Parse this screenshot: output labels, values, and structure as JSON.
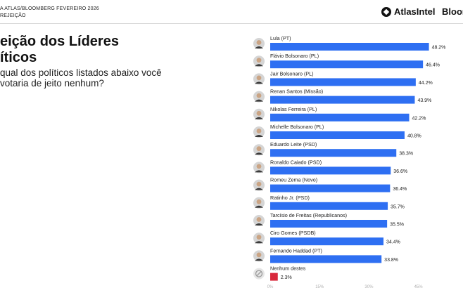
{
  "header": {
    "source_line": "A ATLAS/BLOOMBERG FEVEREIRO 2026",
    "section_line": "REJEIÇÃO",
    "brand_primary": "AtlasIntel",
    "brand_secondary": "Bloor"
  },
  "title_lines": [
    "eição dos Líderes",
    "íticos"
  ],
  "question_lines": [
    "qual dos políticos listados abaixo você",
    "votaria de jeito nenhum?"
  ],
  "chart_data": {
    "type": "bar",
    "orientation": "horizontal",
    "categories": [
      "Lula (PT)",
      "Flávio Bolsonaro (PL)",
      "Jair Bolsonaro (PL)",
      "Renan Santos (Missão)",
      "Nikolas Ferreira (PL)",
      "Michelle Bolsonaro (PL)",
      "Eduardo Leite (PSD)",
      "Ronaldo Caiado (PSD)",
      "Romeu Zema (Novo)",
      "Ratinho Jr. (PSD)",
      "Tarcísio de Freitas (Republicanos)",
      "Ciro Gomes (PSDB)",
      "Fernando Haddad (PT)",
      "Nenhum destes"
    ],
    "values": [
      48.2,
      46.4,
      44.2,
      43.9,
      42.2,
      40.8,
      38.3,
      36.6,
      36.4,
      35.7,
      35.5,
      34.4,
      33.8,
      2.3
    ],
    "value_labels": [
      "48.2%",
      "46.4%",
      "44.2%",
      "43.9%",
      "42.2%",
      "40.8%",
      "38.3%",
      "36.6%",
      "36.4%",
      "35.7%",
      "35.5%",
      "34.4%",
      "33.8%",
      "2.3%"
    ],
    "x_ticks": [
      "0%",
      "15%",
      "30%",
      "45%"
    ],
    "x_tick_values": [
      0,
      15,
      30,
      45
    ],
    "xlim": [
      0,
      50
    ],
    "colors": {
      "bar": "#2e6ff2",
      "none_bar": "#d8283b",
      "tick": "#b0b0b0"
    },
    "icons": [
      "avatar-icon",
      "avatar-icon",
      "avatar-icon",
      "avatar-icon",
      "avatar-icon",
      "avatar-icon",
      "avatar-icon",
      "avatar-icon",
      "avatar-icon",
      "avatar-icon",
      "avatar-icon",
      "avatar-icon",
      "avatar-icon",
      "none-icon"
    ]
  }
}
